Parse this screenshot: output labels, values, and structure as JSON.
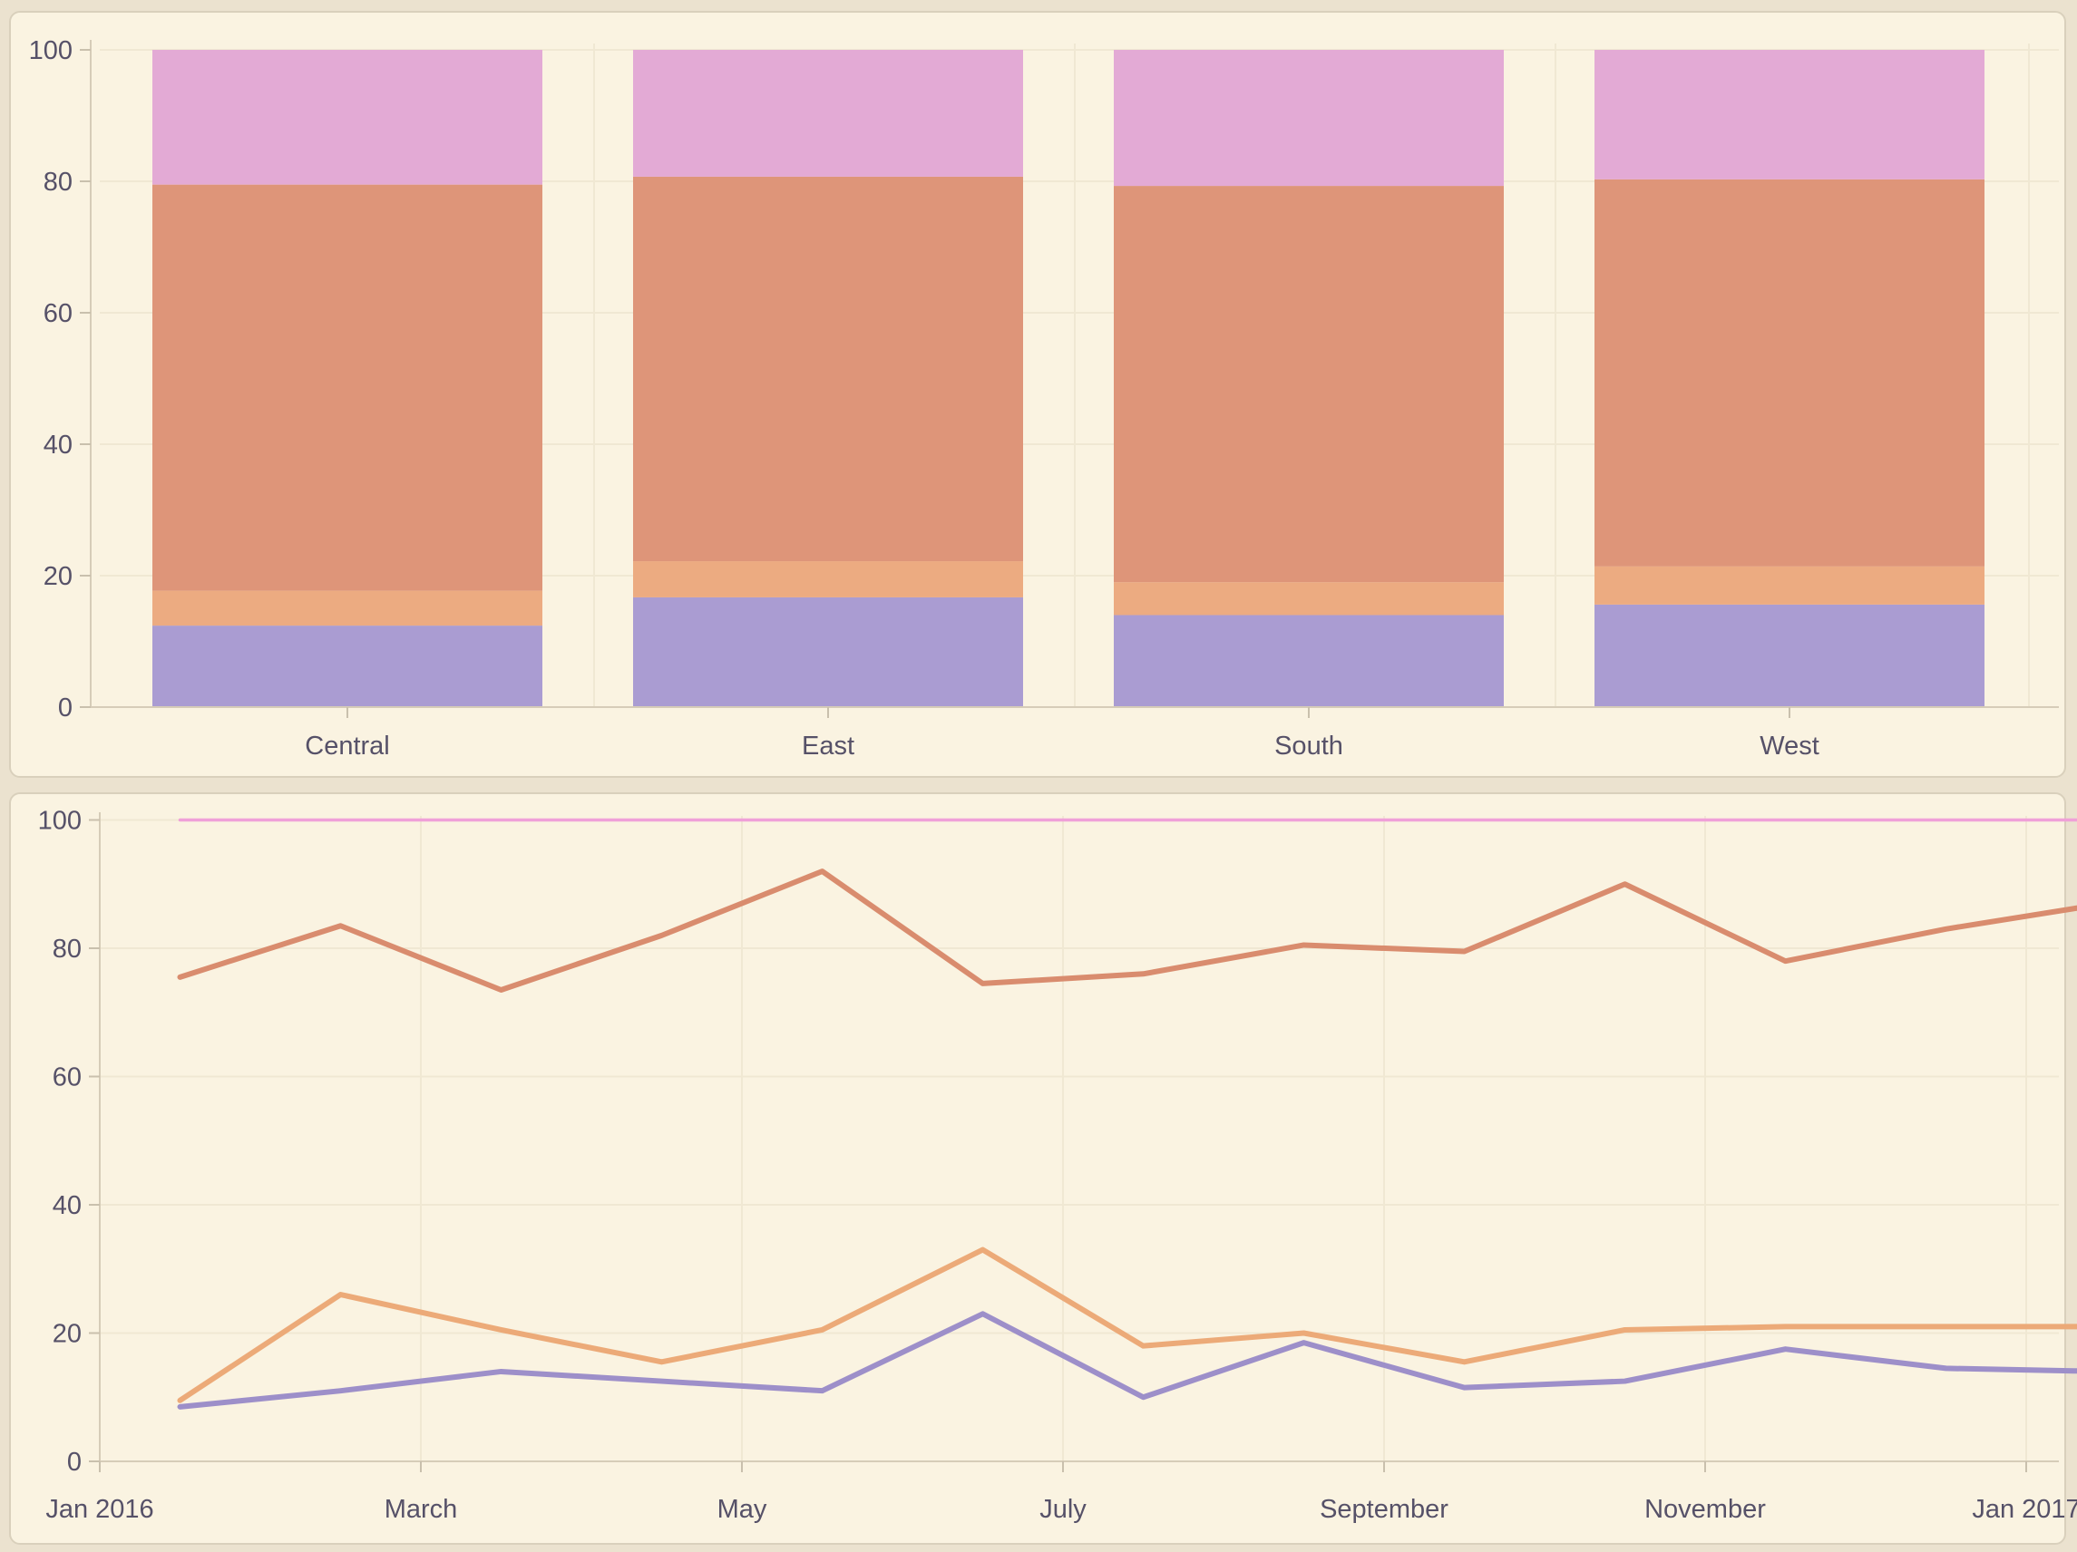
{
  "page": {
    "background_color": "#ebe2cf",
    "card_background_color": "#faf3e1",
    "card_border_color": "#d9d0bc",
    "axis_text_color": "#565168",
    "axis_line_color": "#d6ccb8",
    "gridline_color": "#f0e8d3",
    "tick_color": "#c9c0ad"
  },
  "chart_data": [
    {
      "type": "bar",
      "subtype": "stacked-percent",
      "title": "",
      "categories": [
        "Central",
        "East",
        "South",
        "West"
      ],
      "series": [
        {
          "name": "segment-purple",
          "color": "#aa9cd2",
          "values": [
            12.4,
            16.7,
            14.0,
            15.6
          ]
        },
        {
          "name": "segment-orange",
          "color": "#ecab81",
          "values": [
            5.3,
            5.5,
            5.0,
            5.8
          ]
        },
        {
          "name": "segment-salmon",
          "color": "#de9579",
          "values": [
            61.8,
            58.5,
            60.3,
            58.9
          ]
        },
        {
          "name": "segment-pink",
          "color": "#e3aad5",
          "values": [
            20.5,
            19.3,
            20.7,
            19.7
          ]
        }
      ],
      "ylim": [
        0,
        100
      ],
      "yticks": [
        0,
        20,
        40,
        60,
        80,
        100
      ],
      "grid": "horizontal-and-category-boundaries",
      "legend": "none"
    },
    {
      "type": "line",
      "title": "",
      "x_axis_tick_labels": [
        "Jan 2016",
        "March",
        "May",
        "July",
        "September",
        "November",
        "Jan 2017"
      ],
      "x_axis_last_label_clipped": true,
      "x_points": [
        "Jan 2016",
        "Feb 2016",
        "Mar 2016",
        "Apr 2016",
        "May 2016",
        "Jun 2016",
        "Jul 2016",
        "Aug 2016",
        "Sep 2016",
        "Oct 2016",
        "Nov 2016",
        "Dec 2016",
        "Jan 2017"
      ],
      "series": [
        {
          "name": "line-pink",
          "color": "#f0a0d8",
          "width": 3.5,
          "values": [
            100,
            100,
            100,
            100,
            100,
            100,
            100,
            100,
            100,
            100,
            100,
            100,
            100
          ]
        },
        {
          "name": "line-salmon",
          "color": "#d98c6e",
          "width": 6,
          "values": [
            75.5,
            83.5,
            73.5,
            82,
            92,
            74.5,
            76,
            80.5,
            79.5,
            90,
            78,
            83,
            87
          ]
        },
        {
          "name": "line-orange",
          "color": "#ecaa78",
          "width": 6,
          "values": [
            9.5,
            26,
            20.5,
            15.5,
            20.5,
            33,
            18,
            20,
            15.5,
            20.5,
            21,
            21,
            21
          ]
        },
        {
          "name": "line-purple",
          "color": "#9d8fc9",
          "width": 6,
          "values": [
            8.5,
            11,
            14,
            12.5,
            11,
            23,
            10,
            18.5,
            11.5,
            12.5,
            17.5,
            14.5,
            14
          ]
        }
      ],
      "ylim": [
        0,
        100
      ],
      "yticks": [
        0,
        20,
        40,
        60,
        80,
        100
      ],
      "grid": "horizontal-and-vertical",
      "legend": "none",
      "note_last_point_clipped": true
    }
  ]
}
